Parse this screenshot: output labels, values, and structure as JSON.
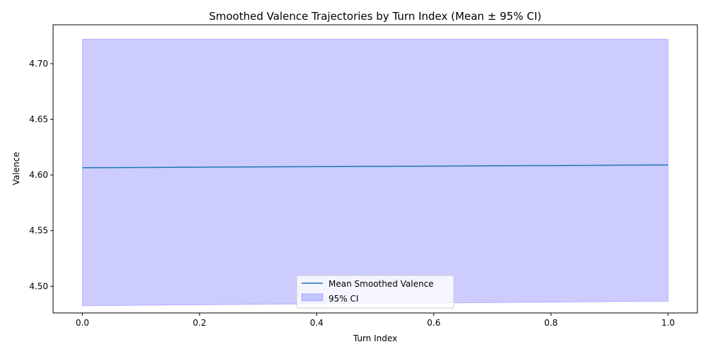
{
  "chart_data": {
    "type": "line",
    "title": "Smoothed Valence Trajectories by Turn Index (Mean ± 95% CI)",
    "xlabel": "Turn Index",
    "ylabel": "Valence",
    "xlim": [
      -0.05,
      1.05
    ],
    "ylim": [
      4.476,
      4.735
    ],
    "x_ticks": [
      0.0,
      0.2,
      0.4,
      0.6,
      0.8,
      1.0
    ],
    "x_tick_labels": [
      "0.0",
      "0.2",
      "0.4",
      "0.6",
      "0.8",
      "1.0"
    ],
    "y_ticks": [
      4.5,
      4.55,
      4.6,
      4.65,
      4.7
    ],
    "y_tick_labels": [
      "4.50",
      "4.55",
      "4.60",
      "4.65",
      "4.70"
    ],
    "grid": false,
    "legend_position": "lower-center",
    "series": [
      {
        "name": "Mean Smoothed Valence",
        "kind": "line",
        "color": "#1f77b4",
        "x": [
          0.0,
          1.0
        ],
        "y": [
          4.6065,
          4.609
        ]
      },
      {
        "name": "95% CI",
        "kind": "band",
        "color": "#0000ff",
        "x": [
          0.0,
          1.0
        ],
        "lower": [
          4.4825,
          4.4865
        ],
        "upper": [
          4.722,
          4.722
        ]
      }
    ]
  }
}
